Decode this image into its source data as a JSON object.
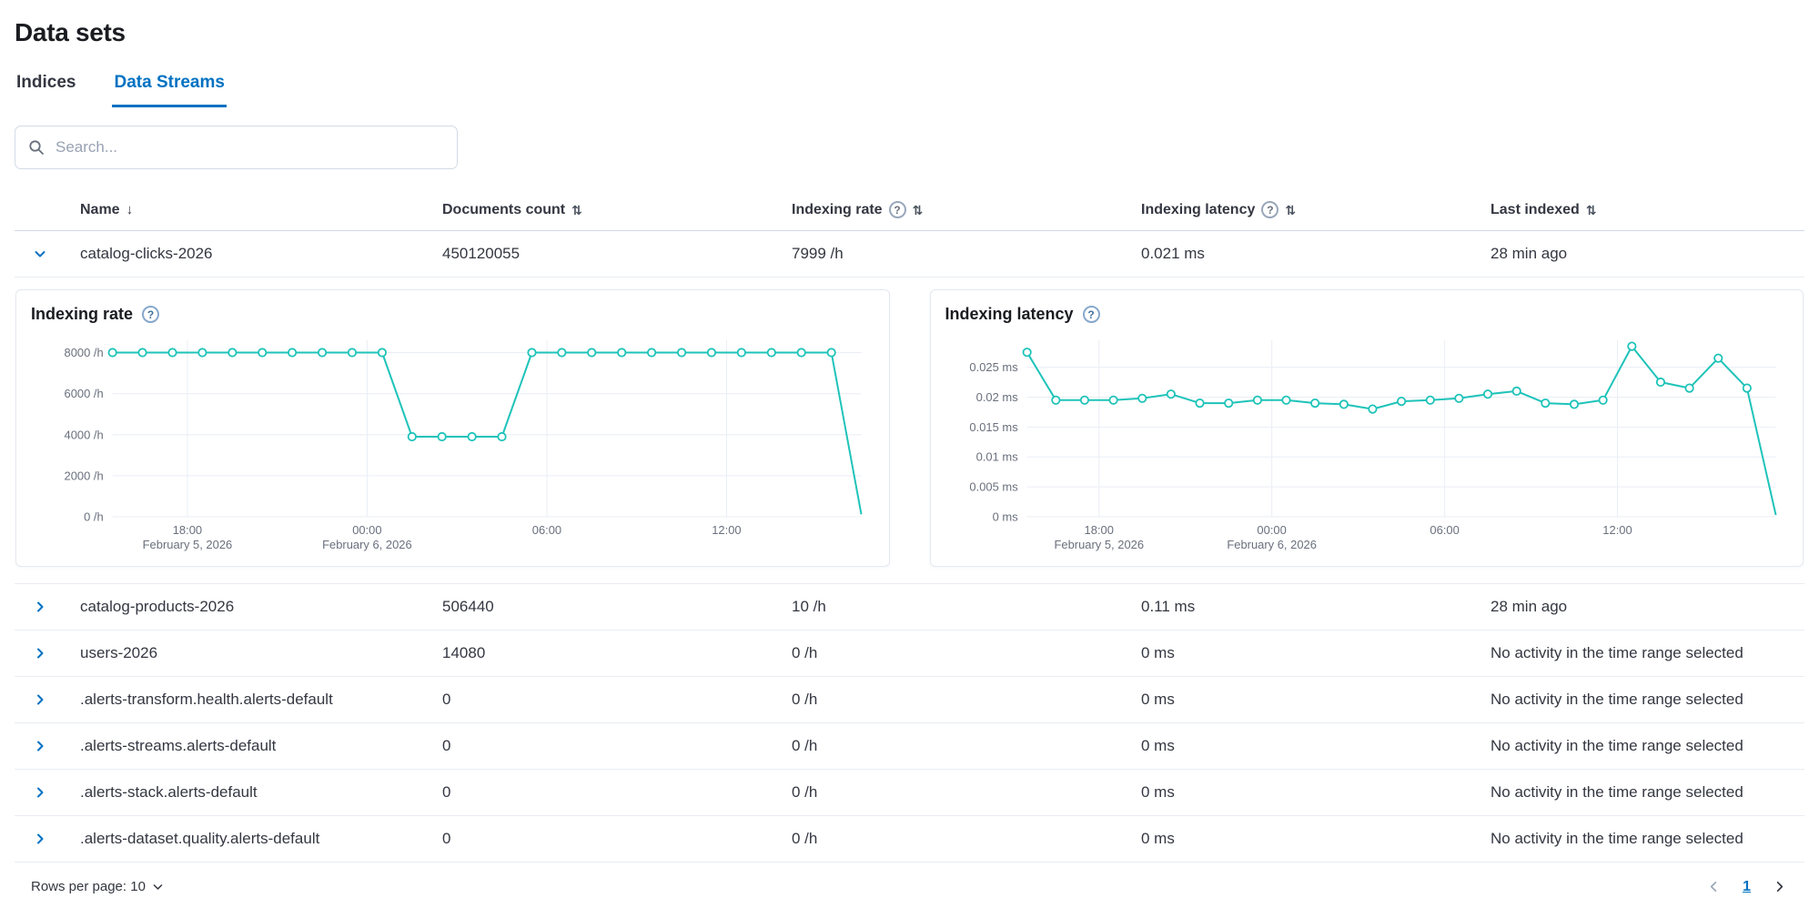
{
  "header": {
    "title": "Data sets"
  },
  "tabs": {
    "items": [
      {
        "label": "Indices"
      },
      {
        "label": "Data Streams"
      }
    ],
    "active_index": 1
  },
  "search": {
    "placeholder": "Search..."
  },
  "table": {
    "columns": [
      {
        "label": "Name",
        "sort_icon": "down",
        "help": false
      },
      {
        "label": "Documents count",
        "sort_icon": "updown",
        "help": false
      },
      {
        "label": "Indexing rate",
        "sort_icon": "updown",
        "help": true
      },
      {
        "label": "Indexing latency",
        "sort_icon": "updown",
        "help": true
      },
      {
        "label": "Last indexed",
        "sort_icon": "updown",
        "help": false
      }
    ],
    "rows": [
      {
        "name": "catalog-clicks-2026",
        "docs": "450120055",
        "rate": "7999 /h",
        "latency": "0.021 ms",
        "last": "28 min ago",
        "expanded": true
      },
      {
        "name": "catalog-products-2026",
        "docs": "506440",
        "rate": "10 /h",
        "latency": "0.11 ms",
        "last": "28 min ago",
        "expanded": false
      },
      {
        "name": "users-2026",
        "docs": "14080",
        "rate": "0 /h",
        "latency": "0 ms",
        "last": "No activity in the time range selected",
        "expanded": false
      },
      {
        "name": ".alerts-transform.health.alerts-default",
        "docs": "0",
        "rate": "0 /h",
        "latency": "0 ms",
        "last": "No activity in the time range selected",
        "expanded": false
      },
      {
        "name": ".alerts-streams.alerts-default",
        "docs": "0",
        "rate": "0 /h",
        "latency": "0 ms",
        "last": "No activity in the time range selected",
        "expanded": false
      },
      {
        "name": ".alerts-stack.alerts-default",
        "docs": "0",
        "rate": "0 /h",
        "latency": "0 ms",
        "last": "No activity in the time range selected",
        "expanded": false
      },
      {
        "name": ".alerts-dataset.quality.alerts-default",
        "docs": "0",
        "rate": "0 /h",
        "latency": "0 ms",
        "last": "No activity in the time range selected",
        "expanded": false
      }
    ]
  },
  "chart_data": [
    {
      "type": "line",
      "title": "Indexing rate",
      "series": [
        {
          "name": "Indexing rate",
          "values": [
            8000,
            8000,
            8000,
            8000,
            8000,
            8000,
            8000,
            8000,
            8000,
            8000,
            3900,
            3900,
            3900,
            3900,
            8000,
            8000,
            8000,
            8000,
            8000,
            8000,
            8000,
            8000,
            8000,
            8000,
            8000,
            120
          ]
        }
      ],
      "ylim": [
        0,
        8600
      ],
      "yticks": [
        {
          "v": 0,
          "label": "0 /h"
        },
        {
          "v": 2000,
          "label": "2000 /h"
        },
        {
          "v": 4000,
          "label": "4000 /h"
        },
        {
          "v": 6000,
          "label": "6000 /h"
        },
        {
          "v": 8000,
          "label": "8000 /h"
        }
      ],
      "xticks": [
        {
          "x": 2.5,
          "label": "18:00",
          "sub": "February 5, 2026"
        },
        {
          "x": 8.5,
          "label": "00:00",
          "sub": "February 6, 2026"
        },
        {
          "x": 14.5,
          "label": "06:00",
          "sub": ""
        },
        {
          "x": 20.5,
          "label": "12:00",
          "sub": ""
        }
      ],
      "grid": true,
      "legend": "none"
    },
    {
      "type": "line",
      "title": "Indexing latency",
      "series": [
        {
          "name": "Indexing latency",
          "values": [
            0.0275,
            0.0195,
            0.0195,
            0.0195,
            0.0198,
            0.0205,
            0.019,
            0.019,
            0.0195,
            0.0195,
            0.019,
            0.0188,
            0.018,
            0.0193,
            0.0195,
            0.0198,
            0.0205,
            0.021,
            0.019,
            0.0188,
            0.0195,
            0.0285,
            0.0225,
            0.0215,
            0.0265,
            0.0215,
            0.0003
          ]
        }
      ],
      "ylim": [
        0,
        0.0295
      ],
      "yticks": [
        {
          "v": 0,
          "label": "0 ms"
        },
        {
          "v": 0.005,
          "label": "0.005 ms"
        },
        {
          "v": 0.01,
          "label": "0.01 ms"
        },
        {
          "v": 0.015,
          "label": "0.015 ms"
        },
        {
          "v": 0.02,
          "label": "0.02 ms"
        },
        {
          "v": 0.025,
          "label": "0.025 ms"
        }
      ],
      "xticks": [
        {
          "x": 2.5,
          "label": "18:00",
          "sub": "February 5, 2026"
        },
        {
          "x": 8.5,
          "label": "00:00",
          "sub": "February 6, 2026"
        },
        {
          "x": 14.5,
          "label": "06:00",
          "sub": ""
        },
        {
          "x": 20.5,
          "label": "12:00",
          "sub": ""
        }
      ],
      "grid": true,
      "legend": "none"
    }
  ],
  "footer": {
    "rows_per_page": "Rows per page: 10",
    "page": "1"
  },
  "colors": {
    "accent": "#0071C2",
    "chart_line": "#1EC3B9",
    "grid": "#E9EEF5",
    "axis_text": "#69707D",
    "text": "#343741"
  }
}
